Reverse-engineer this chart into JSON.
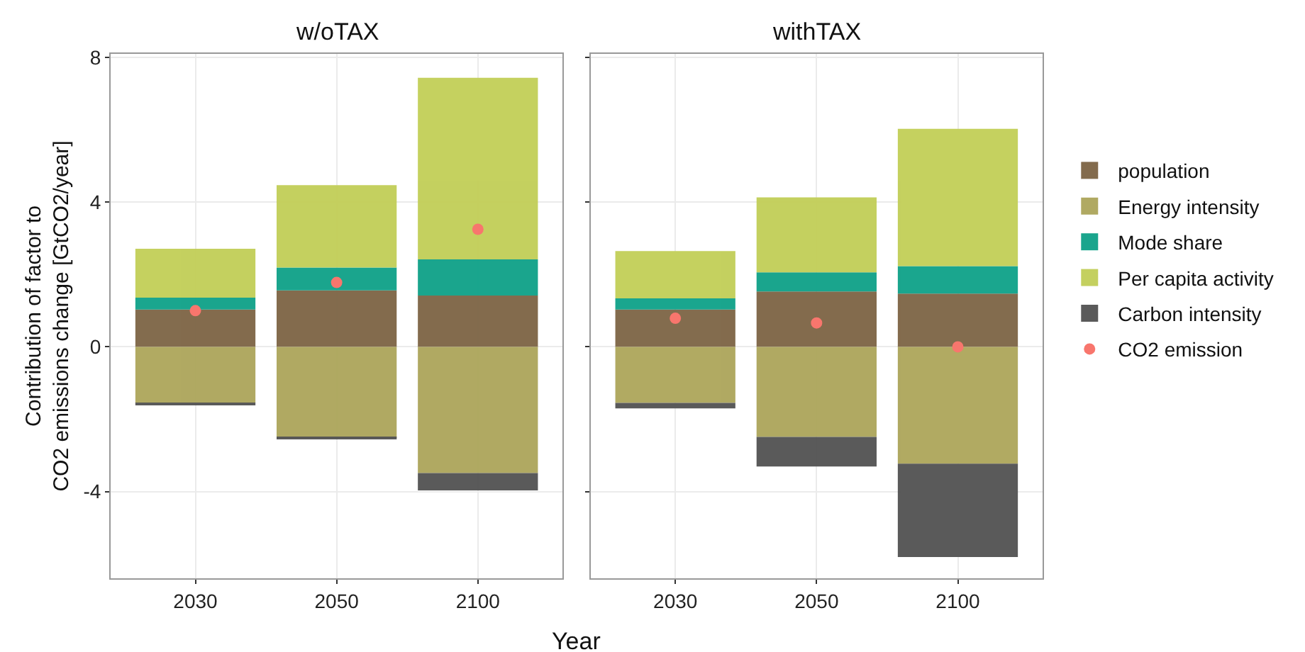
{
  "chart_data": [
    {
      "type": "bar",
      "title": "w/oTAX",
      "xlabel": "Year",
      "ylabel": "Contribution of factor to\nCO2 emissions change [GtCO2/year]",
      "categories": [
        "2030",
        "2050",
        "2100"
      ],
      "stacked": true,
      "ylim": [
        -6.4,
        8.1
      ],
      "yticks": [
        -4,
        0,
        4,
        8
      ],
      "grid": true,
      "series": [
        {
          "color": "#7f6748",
          "values": [
            1.03,
            1.56,
            1.42
          ]
        },
        {
          "color": "#aea75d",
          "values": [
            -1.55,
            -2.52,
            -3.49
          ]
        },
        {
          "color": "#13a38a",
          "values": [
            0.33,
            0.63,
            1.0
          ]
        },
        {
          "color": "#c3cf5a",
          "values": [
            1.35,
            2.28,
            5.02
          ]
        },
        {
          "color": "#555555",
          "values": [
            -0.03,
            -0.03,
            -0.48
          ]
        },
        {
          "type": "scatter",
          "marker": "circle",
          "color": "#f8766d",
          "values": [
            1.0,
            1.78,
            3.25
          ]
        }
      ]
    },
    {
      "type": "bar",
      "title": "withTAX",
      "categories": [
        "2030",
        "2050",
        "2100"
      ],
      "stacked": true,
      "ylim": [
        -6.4,
        8.1
      ],
      "yticks": [
        -4,
        0,
        4,
        8
      ],
      "grid": true,
      "legend": "right",
      "tick_labels": "x",
      "series": [
        {
          "name": "population",
          "color": "#7f6748",
          "values": [
            1.03,
            1.53,
            1.47
          ]
        },
        {
          "name": "Energy intensity",
          "color": "#aea75d",
          "values": [
            -1.55,
            -2.49,
            -3.23
          ]
        },
        {
          "name": "Mode share",
          "color": "#13a38a",
          "values": [
            0.31,
            0.53,
            0.76
          ]
        },
        {
          "name": "Per capita activity",
          "color": "#c3cf5a",
          "values": [
            1.31,
            2.07,
            3.8
          ]
        },
        {
          "name": "Carbon intensity",
          "color": "#555555",
          "values": [
            -0.15,
            -0.82,
            -2.58
          ]
        },
        {
          "name": "CO2 emission",
          "type": "scatter",
          "marker": "circle",
          "color": "#f8766d",
          "values": [
            0.79,
            0.66,
            0.0
          ]
        }
      ]
    }
  ]
}
